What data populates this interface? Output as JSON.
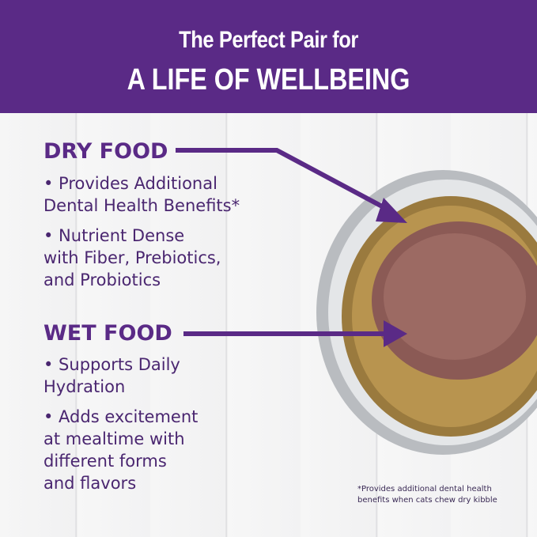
{
  "header": {
    "line1": "The Perfect Pair for",
    "line2": "A LIFE OF WELLBEING"
  },
  "dry": {
    "heading": "DRY FOOD",
    "bullets": [
      "• Provides Additional\nDental Health Benefits*",
      "• Nutrient Dense\nwith Fiber, Prebiotics,\nand Probiotics"
    ]
  },
  "wet": {
    "heading": "WET FOOD",
    "bullets": [
      "• Supports Daily\nHydration",
      "• Adds excitement\nat mealtime with\ndifferent forms\nand flavors"
    ]
  },
  "footnote": "*Provides additional dental health\nbenefits when cats chew dry kibble",
  "colors": {
    "brand": "#5a2a86"
  }
}
